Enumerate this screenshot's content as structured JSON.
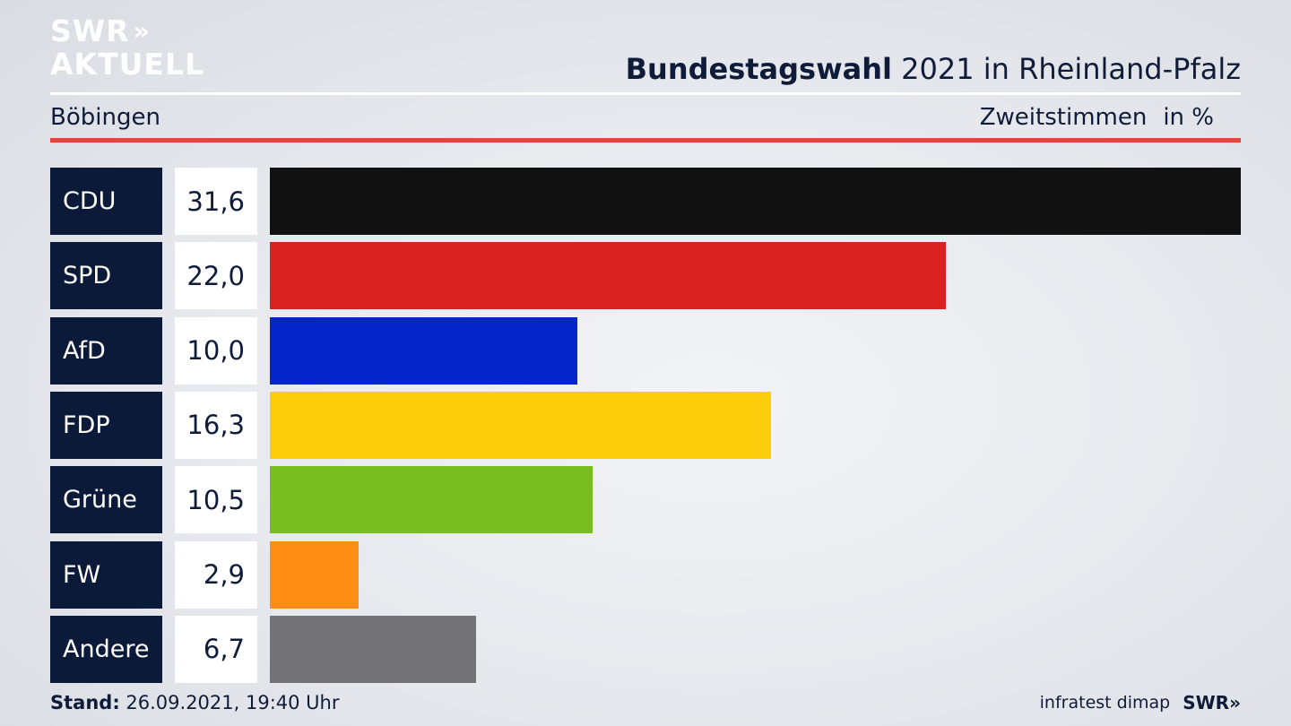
{
  "logo": {
    "line1": "SWR",
    "chevrons": "»",
    "line2": "AKTUELL"
  },
  "header": {
    "title_bold": "Bundestagswahl",
    "title_rest": " 2021 in Rheinland-Pfalz",
    "region": "Böbingen",
    "subtitle": "Zweitstimmen",
    "unit": "in %"
  },
  "chart_data": {
    "type": "bar",
    "orientation": "horizontal",
    "categories": [
      "CDU",
      "SPD",
      "AfD",
      "FDP",
      "Grüne",
      "FW",
      "Andere"
    ],
    "values": [
      31.6,
      22.0,
      10.0,
      16.3,
      10.5,
      2.9,
      6.7
    ],
    "value_labels": [
      "31,6",
      "22,0",
      "10,0",
      "16,3",
      "10,5",
      "2,9",
      "6,7"
    ],
    "colors": [
      "#111111",
      "#d92121",
      "#0425c9",
      "#fecd0b",
      "#78be1f",
      "#fe8c15",
      "#737375"
    ],
    "xlim": [
      0,
      31.6
    ]
  },
  "footer": {
    "stand_label": "Stand:",
    "stand_value": " 26.09.2021, 19:40 Uhr",
    "source": "infratest dimap",
    "brand": "SWR»"
  }
}
